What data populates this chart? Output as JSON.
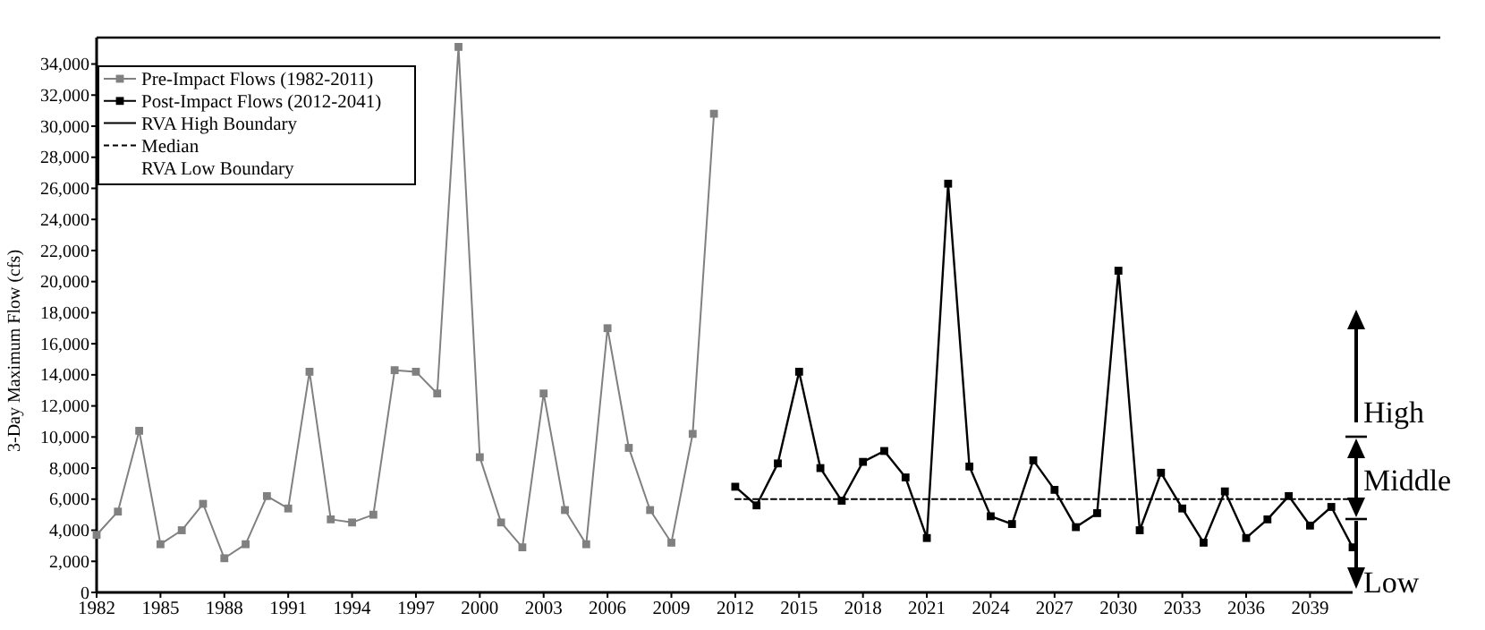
{
  "chart_data": {
    "type": "line",
    "ylabel": "3-Day Maximum Flow (cfs)",
    "xlim": [
      1982,
      2041
    ],
    "ylim": [
      0,
      35700
    ],
    "xticks": [
      1982,
      1985,
      1988,
      1991,
      1994,
      1997,
      2000,
      2003,
      2006,
      2009,
      2012,
      2015,
      2018,
      2021,
      2024,
      2027,
      2030,
      2033,
      2036,
      2039
    ],
    "yticks": [
      {
        "value": 0,
        "label": "0"
      },
      {
        "value": 2000,
        "label": "2,000"
      },
      {
        "value": 4000,
        "label": "4,000"
      },
      {
        "value": 6000,
        "label": "6,000"
      },
      {
        "value": 8000,
        "label": "8,000"
      },
      {
        "value": 10000,
        "label": "10,000"
      },
      {
        "value": 12000,
        "label": "12,000"
      },
      {
        "value": 14000,
        "label": "14,000"
      },
      {
        "value": 16000,
        "label": "16,000"
      },
      {
        "value": 18000,
        "label": "18,000"
      },
      {
        "value": 20000,
        "label": "20,000"
      },
      {
        "value": 22000,
        "label": "22,000"
      },
      {
        "value": 24000,
        "label": "24,000"
      },
      {
        "value": 26000,
        "label": "26,000"
      },
      {
        "value": 28000,
        "label": "28,000"
      },
      {
        "value": 30000,
        "label": "30,000"
      },
      {
        "value": 32000,
        "label": "32,000"
      },
      {
        "value": 34000,
        "label": "34,000"
      }
    ],
    "grid": false,
    "legend": "top left",
    "marker": "square",
    "series": [
      {
        "name": "Pre-Impact Flows (1982-2011)",
        "color": "#808080",
        "x": [
          1982,
          1983,
          1984,
          1985,
          1986,
          1987,
          1988,
          1989,
          1990,
          1991,
          1992,
          1993,
          1994,
          1995,
          1996,
          1997,
          1998,
          1999,
          2000,
          2001,
          2002,
          2003,
          2004,
          2005,
          2006,
          2007,
          2008,
          2009,
          2010,
          2011
        ],
        "values": [
          3700,
          5200,
          10400,
          3100,
          4000,
          5700,
          2200,
          3100,
          6200,
          5400,
          14200,
          4700,
          4500,
          5000,
          14300,
          14200,
          12800,
          35100,
          8700,
          4500,
          2900,
          12800,
          5300,
          3100,
          17000,
          9300,
          5300,
          3200,
          10200,
          30800
        ]
      },
      {
        "name": "Post-Impact Flows (2012-2041)",
        "color": "#000000",
        "x": [
          2012,
          2013,
          2014,
          2015,
          2016,
          2017,
          2018,
          2019,
          2020,
          2021,
          2022,
          2023,
          2024,
          2025,
          2026,
          2027,
          2028,
          2029,
          2030,
          2031,
          2032,
          2033,
          2034,
          2035,
          2036,
          2037,
          2038,
          2039,
          2040,
          2041
        ],
        "values": [
          6800,
          5600,
          8300,
          14200,
          8000,
          5900,
          8400,
          9100,
          7400,
          3500,
          26300,
          8100,
          4900,
          4400,
          8500,
          6600,
          4200,
          5100,
          20700,
          4000,
          7700,
          5400,
          3200,
          6500,
          3500,
          4700,
          6200,
          4300,
          5500,
          2900
        ]
      },
      {
        "name": "Median",
        "color": "#000000",
        "marker": "none",
        "line_style": "dashed",
        "x": [
          2012,
          2041
        ],
        "values": [
          6000,
          6000
        ]
      }
    ],
    "annotations": [
      "RVA High Boundary",
      "RVA Low Boundary",
      "High",
      "Middle",
      "Low"
    ]
  }
}
